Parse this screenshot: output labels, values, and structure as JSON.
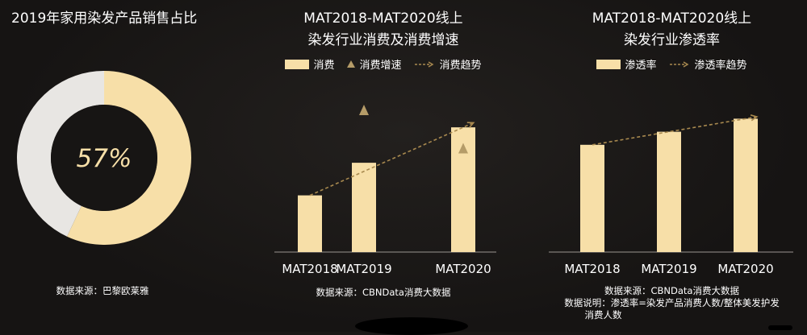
{
  "colors": {
    "accent": "#f7dfa8",
    "marker": "#b59c68",
    "trend": "#a8894f",
    "donut_rest": "#e8e6e3",
    "background": "#171514"
  },
  "panel1": {
    "title": "2019年家用染发产品销售占比",
    "center_label": "57%",
    "source": "数据来源：巴黎欧莱雅"
  },
  "panel2": {
    "title_line1": "MAT2018-MAT2020线上",
    "title_line2": "染发行业消费及消费增速",
    "legend": {
      "bar": "消费",
      "marker": "消费增速",
      "trend": "消费趋势"
    },
    "source": "数据来源：CBNData消费大数据"
  },
  "panel3": {
    "title_line1": "MAT2018-MAT2020线上",
    "title_line2": "染发行业渗透率",
    "legend": {
      "bar": "渗透率",
      "trend": "渗透率趋势"
    },
    "source": "数据来源：CBNData消费大数据",
    "note_line1": "数据说明：渗透率=染发产品消费人数/整体美发护发",
    "note_line2": "消费人数"
  },
  "chart_data": [
    {
      "type": "pie",
      "title": "2019年家用染发产品销售占比",
      "values": [
        57,
        43
      ],
      "labels": [
        "57%",
        ""
      ]
    },
    {
      "type": "bar",
      "title": "MAT2018-MAT2020线上染发行业消费及消费增速",
      "categories": [
        "MAT2018",
        "MAT2019",
        "MAT2020"
      ],
      "series": [
        {
          "name": "消费",
          "values": [
            40,
            63,
            88
          ]
        },
        {
          "name": "消费增速",
          "type": "scatter",
          "values": [
            null,
            100,
            73
          ]
        },
        {
          "name": "消费趋势",
          "type": "line",
          "values": [
            40,
            63,
            88
          ]
        }
      ],
      "ylim": [
        0,
        100
      ]
    },
    {
      "type": "bar",
      "title": "MAT2018-MAT2020线上染发行业渗透率",
      "categories": [
        "MAT2018",
        "MAT2019",
        "MAT2020"
      ],
      "series": [
        {
          "name": "渗透率",
          "values": [
            74,
            83,
            92
          ]
        },
        {
          "name": "渗透率趋势",
          "type": "line",
          "values": [
            74,
            83,
            92
          ]
        }
      ],
      "ylim": [
        0,
        100
      ]
    }
  ]
}
